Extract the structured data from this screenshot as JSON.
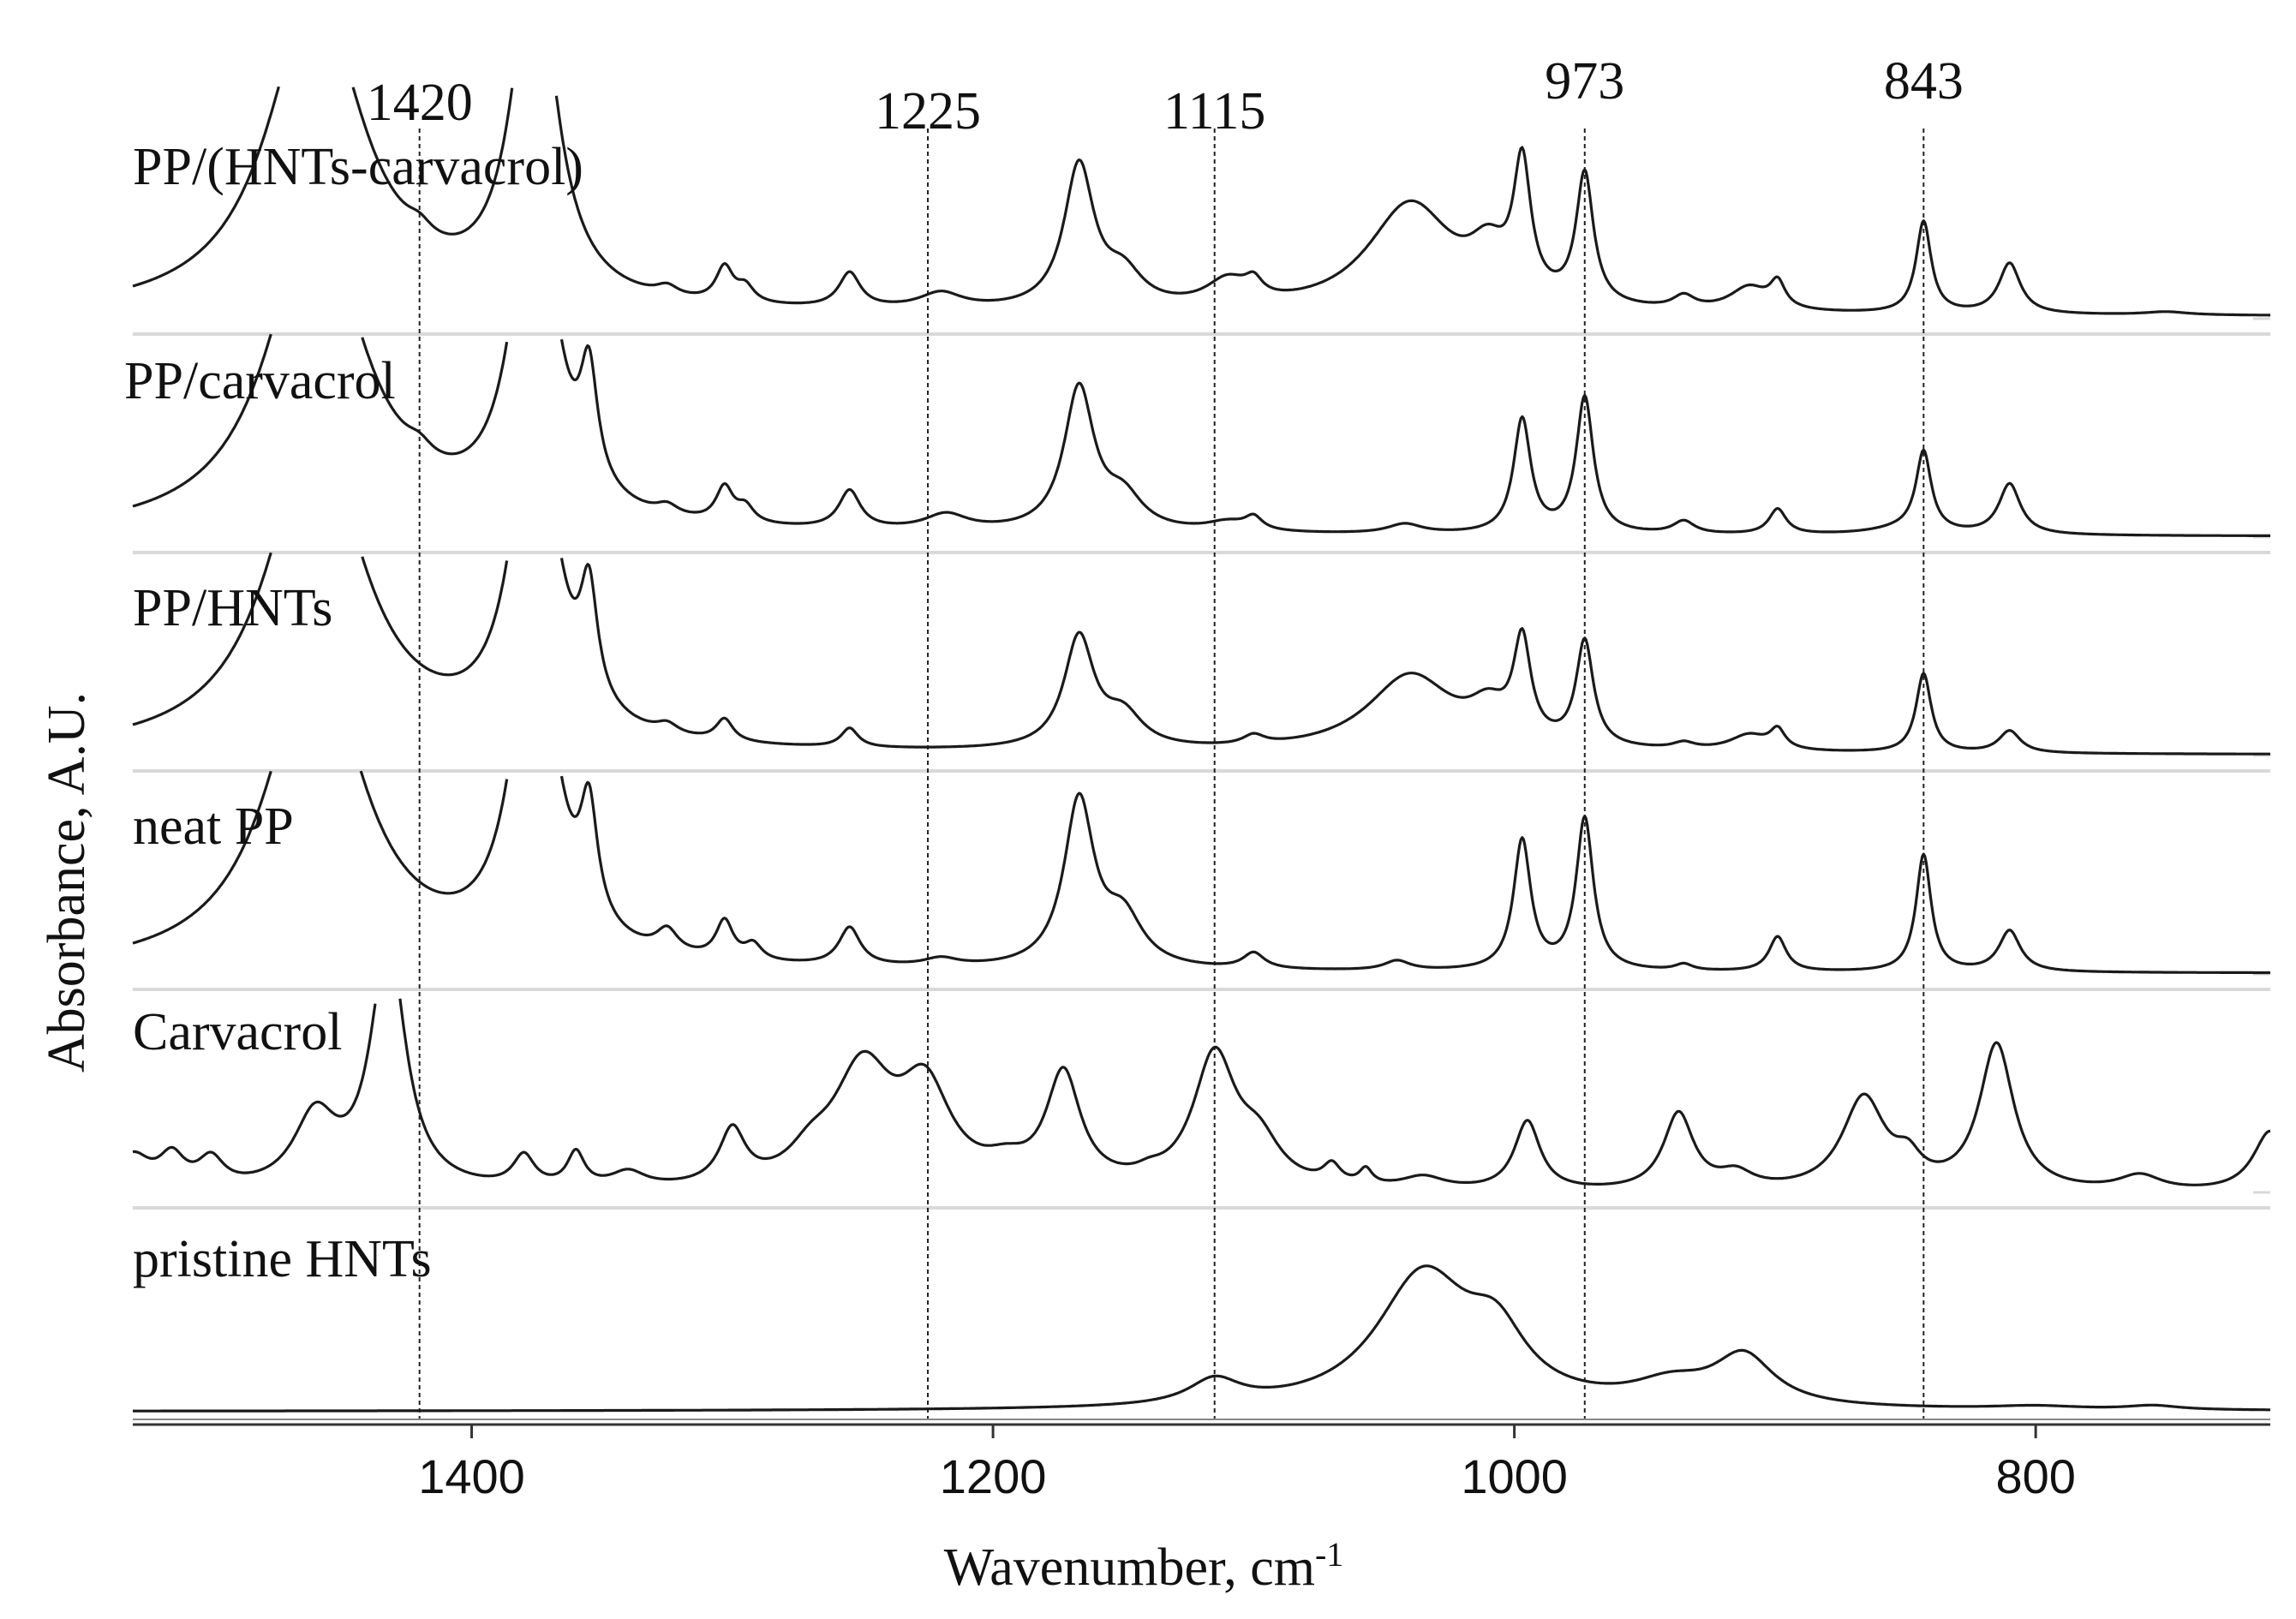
{
  "chart_data": {
    "type": "line",
    "xlabel": "Wavenumber, cm",
    "xlabel_sup": "-1",
    "ylabel": "Absorbance, A.U.",
    "xlim": [
      1530,
      710
    ],
    "xticks": [
      1400,
      1200,
      1000,
      800
    ],
    "xtick_labels": [
      "1400",
      "1200",
      "1000",
      "800"
    ],
    "marker_lines": [
      {
        "x": 1420,
        "label": "1420"
      },
      {
        "x": 1225,
        "label": "1225"
      },
      {
        "x": 1115,
        "label": "1115"
      },
      {
        "x": 973,
        "label": "973"
      },
      {
        "x": 843,
        "label": "843"
      }
    ],
    "series": [
      {
        "name": "PP/(HNTs-carvacrol)",
        "baseline": 0.03,
        "peaks": [
          [
            1460,
            2.0,
            22
          ],
          [
            1376,
            2.2,
            10
          ],
          [
            1420,
            0.08,
            6
          ],
          [
            1325,
            0.06,
            5
          ],
          [
            1303,
            0.22,
            4
          ],
          [
            1295,
            0.1,
            4
          ],
          [
            1255,
            0.22,
            5
          ],
          [
            1220,
            0.1,
            10
          ],
          [
            1167,
            0.9,
            7
          ],
          [
            1150,
            0.2,
            9
          ],
          [
            1110,
            0.16,
            10
          ],
          [
            1100,
            0.1,
            4
          ],
          [
            1040,
            0.68,
            20
          ],
          [
            1010,
            0.28,
            9
          ],
          [
            997,
            0.82,
            4
          ],
          [
            973,
            0.82,
            4
          ],
          [
            935,
            0.08,
            5
          ],
          [
            910,
            0.15,
            9
          ],
          [
            899,
            0.16,
            3.5
          ],
          [
            843,
            0.58,
            3.5
          ],
          [
            810,
            0.32,
            5
          ],
          [
            750,
            0.02,
            10
          ]
        ]
      },
      {
        "name": "PP/carvacrol",
        "baseline": 0.02,
        "peaks": [
          [
            1460,
            2.0,
            22
          ],
          [
            1376,
            2.2,
            10
          ],
          [
            1355,
            0.7,
            4
          ],
          [
            1420,
            0.08,
            6
          ],
          [
            1325,
            0.06,
            5
          ],
          [
            1303,
            0.22,
            4
          ],
          [
            1295,
            0.1,
            4
          ],
          [
            1255,
            0.24,
            5
          ],
          [
            1218,
            0.1,
            10
          ],
          [
            1167,
            0.9,
            7
          ],
          [
            1150,
            0.2,
            9
          ],
          [
            1110,
            0.06,
            10
          ],
          [
            1100,
            0.08,
            4
          ],
          [
            1042,
            0.06,
            8
          ],
          [
            997,
            0.72,
            4
          ],
          [
            973,
            0.86,
            4
          ],
          [
            935,
            0.08,
            5
          ],
          [
            899,
            0.16,
            4
          ],
          [
            850,
            0.04,
            15
          ],
          [
            843,
            0.5,
            3.5
          ],
          [
            810,
            0.32,
            5
          ]
        ]
      },
      {
        "name": "PP/HNTs",
        "baseline": 0.02,
        "peaks": [
          [
            1460,
            2.0,
            22
          ],
          [
            1376,
            2.2,
            10
          ],
          [
            1355,
            0.7,
            4
          ],
          [
            1325,
            0.06,
            5
          ],
          [
            1303,
            0.14,
            4
          ],
          [
            1255,
            0.12,
            4
          ],
          [
            1167,
            0.7,
            7
          ],
          [
            1150,
            0.2,
            9
          ],
          [
            1100,
            0.06,
            5
          ],
          [
            1040,
            0.48,
            20
          ],
          [
            1010,
            0.2,
            9
          ],
          [
            997,
            0.62,
            4
          ],
          [
            973,
            0.66,
            4
          ],
          [
            935,
            0.04,
            5
          ],
          [
            910,
            0.1,
            9
          ],
          [
            899,
            0.12,
            3.5
          ],
          [
            843,
            0.5,
            3.5
          ],
          [
            810,
            0.14,
            5
          ]
        ]
      },
      {
        "name": "neat PP",
        "baseline": 0.02,
        "peaks": [
          [
            1460,
            2.0,
            22
          ],
          [
            1376,
            2.2,
            10
          ],
          [
            1355,
            0.7,
            4
          ],
          [
            1325,
            0.14,
            5
          ],
          [
            1303,
            0.24,
            4
          ],
          [
            1292,
            0.1,
            4
          ],
          [
            1255,
            0.24,
            5
          ],
          [
            1220,
            0.05,
            8
          ],
          [
            1167,
            1.05,
            7
          ],
          [
            1150,
            0.3,
            9
          ],
          [
            1100,
            0.1,
            5
          ],
          [
            1045,
            0.06,
            6
          ],
          [
            997,
            0.82,
            4
          ],
          [
            973,
            0.96,
            4
          ],
          [
            935,
            0.04,
            4
          ],
          [
            899,
            0.22,
            4
          ],
          [
            843,
            0.74,
            3.5
          ],
          [
            810,
            0.26,
            5
          ]
        ]
      },
      {
        "name": "Carvacrol",
        "baseline": 0.0,
        "peaks": [
          [
            1530,
            0.22,
            8
          ],
          [
            1515,
            0.2,
            6
          ],
          [
            1500,
            0.18,
            6
          ],
          [
            1460,
            0.46,
            10
          ],
          [
            1432,
            1.6,
            8
          ],
          [
            1380,
            0.2,
            5
          ],
          [
            1360,
            0.22,
            4
          ],
          [
            1340,
            0.1,
            8
          ],
          [
            1300,
            0.35,
            6
          ],
          [
            1270,
            0.15,
            10
          ],
          [
            1250,
            0.75,
            14
          ],
          [
            1226,
            0.6,
            12
          ],
          [
            1195,
            0.1,
            10
          ],
          [
            1173,
            0.72,
            8
          ],
          [
            1140,
            0.04,
            6
          ],
          [
            1115,
            0.85,
            10
          ],
          [
            1098,
            0.26,
            10
          ],
          [
            1070,
            0.12,
            4
          ],
          [
            1057,
            0.1,
            3
          ],
          [
            1035,
            0.08,
            10
          ],
          [
            995,
            0.45,
            6
          ],
          [
            937,
            0.5,
            7
          ],
          [
            915,
            0.1,
            8
          ],
          [
            866,
            0.6,
            10
          ],
          [
            849,
            0.15,
            6
          ],
          [
            815,
            0.95,
            8
          ],
          [
            760,
            0.1,
            10
          ],
          [
            710,
            0.4,
            8
          ]
        ]
      },
      {
        "name": "pristine HNTs",
        "baseline": 0.005,
        "peaks": [
          [
            1115,
            0.06,
            12
          ],
          [
            1035,
            0.32,
            22
          ],
          [
            1007,
            0.14,
            14
          ],
          [
            940,
            0.05,
            18
          ],
          [
            912,
            0.12,
            14
          ],
          [
            800,
            0.008,
            20
          ],
          [
            755,
            0.01,
            12
          ]
        ]
      }
    ]
  }
}
